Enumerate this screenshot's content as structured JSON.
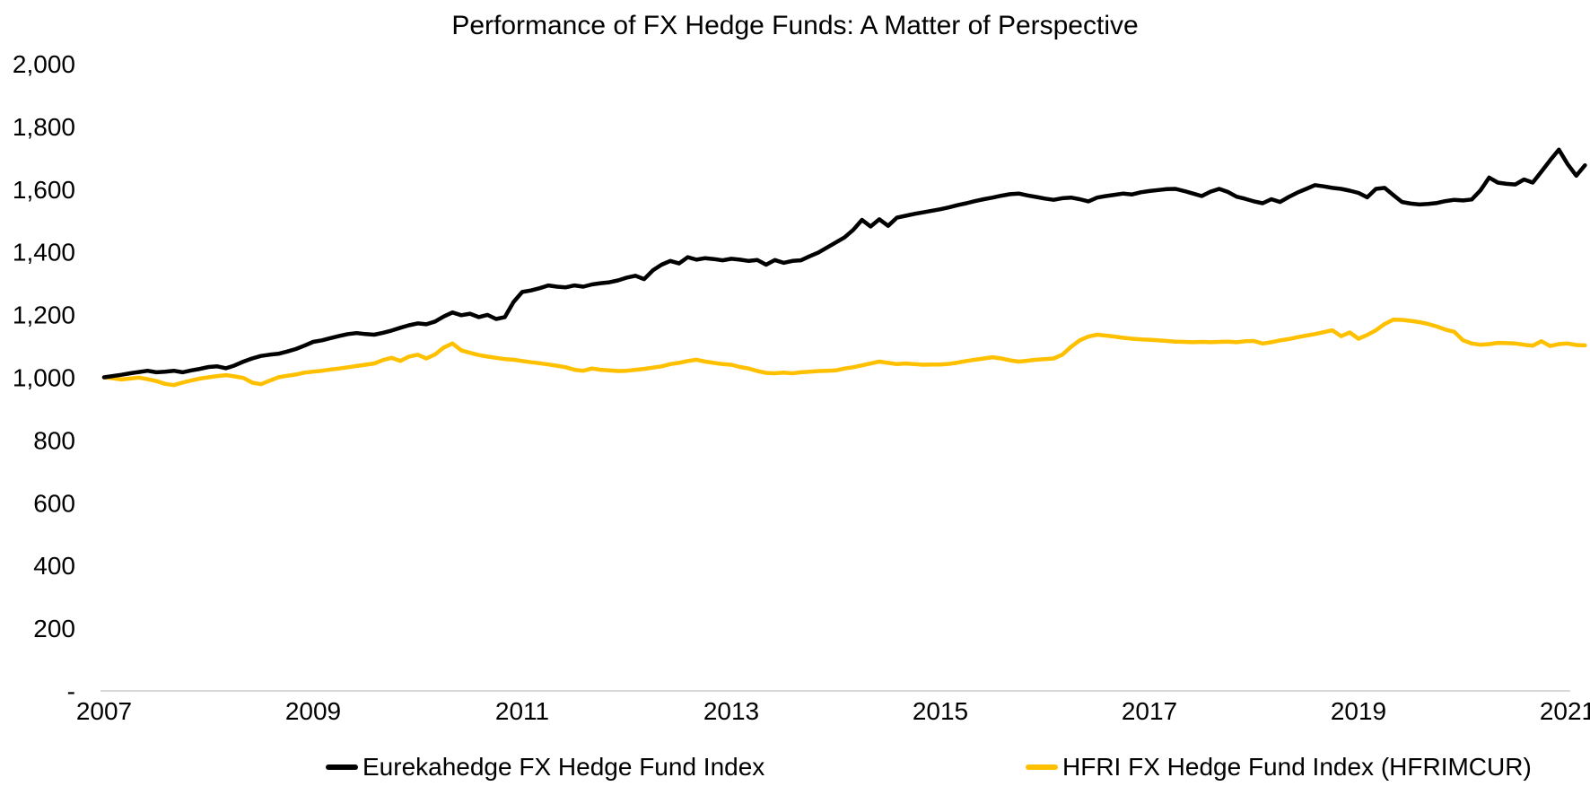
{
  "title": "Performance of FX Hedge Funds: A Matter of Perspective",
  "legend": {
    "items": [
      {
        "label": "Eurekahedge FX Hedge Fund Index",
        "color": "#000000"
      },
      {
        "label": "HFRI FX Hedge Fund Index (HFRIMCUR)",
        "color": "#FFC000"
      }
    ]
  },
  "chart_data": {
    "type": "line",
    "title": "Performance of FX Hedge Funds: A Matter of Perspective",
    "xlabel": "",
    "ylabel": "",
    "ylim": [
      0,
      2000
    ],
    "grid": false,
    "legend_position": "bottom",
    "axis_color": "#D9D9D9",
    "text_color": "#000000",
    "x_start_year": 2007,
    "points_per_year": 12,
    "x_ticks": [
      {
        "label": "2007",
        "year": 2007
      },
      {
        "label": "2009",
        "year": 2009
      },
      {
        "label": "2011",
        "year": 2011
      },
      {
        "label": "2013",
        "year": 2013
      },
      {
        "label": "2015",
        "year": 2015
      },
      {
        "label": "2017",
        "year": 2017
      },
      {
        "label": "2019",
        "year": 2019
      },
      {
        "label": "2021",
        "year": 2021
      }
    ],
    "y_ticks": [
      {
        "label": "2,000",
        "value": 2000
      },
      {
        "label": "1,800",
        "value": 1800
      },
      {
        "label": "1,600",
        "value": 1600
      },
      {
        "label": "1,400",
        "value": 1400
      },
      {
        "label": "1,200",
        "value": 1200
      },
      {
        "label": "1,000",
        "value": 1000
      },
      {
        "label": "800",
        "value": 800
      },
      {
        "label": "600",
        "value": 600
      },
      {
        "label": "400",
        "value": 400
      },
      {
        "label": "200",
        "value": 200
      },
      {
        "label": "-",
        "value": 0
      }
    ],
    "series": [
      {
        "id": "eurekahedge",
        "name": "Eurekahedge FX Hedge Fund Index",
        "color": "#000000",
        "values": [
          1000,
          1004,
          1008,
          1013,
          1017,
          1021,
          1016,
          1018,
          1021,
          1016,
          1022,
          1027,
          1033,
          1035,
          1029,
          1038,
          1050,
          1060,
          1068,
          1072,
          1075,
          1082,
          1090,
          1101,
          1113,
          1118,
          1125,
          1132,
          1138,
          1141,
          1138,
          1136,
          1142,
          1149,
          1158,
          1166,
          1172,
          1169,
          1178,
          1194,
          1207,
          1198,
          1203,
          1192,
          1199,
          1186,
          1192,
          1240,
          1272,
          1277,
          1284,
          1293,
          1289,
          1287,
          1293,
          1289,
          1296,
          1300,
          1303,
          1309,
          1318,
          1324,
          1313,
          1341,
          1359,
          1371,
          1363,
          1383,
          1375,
          1380,
          1377,
          1373,
          1378,
          1375,
          1371,
          1374,
          1359,
          1374,
          1365,
          1371,
          1373,
          1386,
          1398,
          1414,
          1430,
          1446,
          1470,
          1502,
          1481,
          1504,
          1483,
          1509,
          1515,
          1521,
          1526,
          1531,
          1536,
          1542,
          1549,
          1555,
          1562,
          1568,
          1573,
          1579,
          1584,
          1586,
          1580,
          1575,
          1570,
          1566,
          1571,
          1573,
          1568,
          1561,
          1573,
          1578,
          1582,
          1586,
          1583,
          1590,
          1594,
          1597,
          1600,
          1601,
          1594,
          1586,
          1578,
          1592,
          1601,
          1591,
          1576,
          1569,
          1561,
          1555,
          1568,
          1559,
          1575,
          1589,
          1601,
          1613,
          1609,
          1604,
          1601,
          1595,
          1588,
          1574,
          1601,
          1604,
          1581,
          1559,
          1554,
          1551,
          1553,
          1556,
          1562,
          1566,
          1564,
          1567,
          1596,
          1637,
          1621,
          1617,
          1615,
          1631,
          1621,
          1656,
          1692,
          1726,
          1680,
          1643,
          1676
        ]
      },
      {
        "id": "hfri",
        "name": "HFRI FX Hedge Fund Index (HFRIMCUR)",
        "color": "#FFC000",
        "values": [
          1000,
          997,
          993,
          996,
          999,
          994,
          988,
          979,
          975,
          983,
          990,
          996,
          1000,
          1004,
          1007,
          1003,
          998,
          983,
          978,
          989,
          1000,
          1005,
          1009,
          1015,
          1018,
          1021,
          1025,
          1028,
          1032,
          1036,
          1040,
          1044,
          1055,
          1062,
          1052,
          1066,
          1072,
          1060,
          1073,
          1095,
          1108,
          1086,
          1078,
          1071,
          1066,
          1062,
          1058,
          1056,
          1052,
          1048,
          1045,
          1041,
          1037,
          1032,
          1024,
          1021,
          1028,
          1024,
          1022,
          1020,
          1021,
          1024,
          1027,
          1031,
          1035,
          1042,
          1046,
          1052,
          1056,
          1050,
          1046,
          1042,
          1040,
          1033,
          1028,
          1020,
          1014,
          1013,
          1015,
          1013,
          1016,
          1018,
          1020,
          1021,
          1022,
          1028,
          1032,
          1038,
          1044,
          1050,
          1046,
          1042,
          1044,
          1042,
          1040,
          1041,
          1041,
          1043,
          1047,
          1052,
          1056,
          1060,
          1064,
          1060,
          1054,
          1050,
          1053,
          1056,
          1058,
          1060,
          1072,
          1097,
          1118,
          1130,
          1136,
          1133,
          1130,
          1126,
          1123,
          1121,
          1120,
          1118,
          1116,
          1114,
          1113,
          1112,
          1113,
          1112,
          1113,
          1114,
          1112,
          1115,
          1116,
          1108,
          1112,
          1118,
          1122,
          1128,
          1133,
          1138,
          1144,
          1150,
          1131,
          1143,
          1123,
          1135,
          1150,
          1170,
          1184,
          1183,
          1180,
          1176,
          1170,
          1162,
          1152,
          1145,
          1118,
          1108,
          1104,
          1106,
          1110,
          1109,
          1108,
          1104,
          1101,
          1115,
          1100,
          1106,
          1108,
          1103,
          1102
        ]
      }
    ]
  }
}
